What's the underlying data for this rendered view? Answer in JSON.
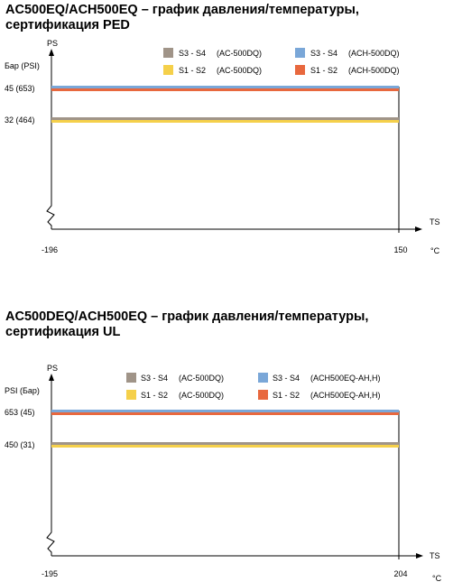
{
  "charts": [
    {
      "title_line1": "AC500EQ/ACH500EQ – график давления/температуры,",
      "title_line2": "сертификация PED"
    },
    {
      "title_line1": "AC500DEQ/ACH500EQ – график давления/температуры,",
      "title_line2": "сертификация UL"
    }
  ],
  "colors": {
    "s3s4_ac": "#a09488",
    "s1s2_ac": "#f5d04a",
    "s3s4_ach": "#7aa7d8",
    "s1s2_ach": "#e8683e",
    "frame": "#000000"
  },
  "chart_data": [
    {
      "type": "line",
      "title": "AC500EQ/ACH500EQ – график давления/температуры, сертификация PED",
      "y_axis_label": "PS",
      "y_unit_label": "Бар (PSI)",
      "x_axis_label": "TS",
      "x_unit_label": "°C",
      "x_range": [
        -196,
        150
      ],
      "x_tick_labels": [
        "-196",
        "150"
      ],
      "y_tick_labels": [
        "45  (653)",
        "32  (464)"
      ],
      "legend_position": "top-right",
      "series": [
        {
          "name": "S3 - S4     (AC-500DQ)",
          "label": "S3 - S4",
          "model": "(AC-500DQ)",
          "color": "#a09488",
          "x": [
            -196,
            150
          ],
          "y": [
            32,
            32
          ]
        },
        {
          "name": "S1 - S2     (AC-500DQ)",
          "label": "S1 - S2",
          "model": "(AC-500DQ)",
          "color": "#f5d04a",
          "x": [
            -196,
            150
          ],
          "y": [
            32,
            32
          ]
        },
        {
          "name": "S3 - S4     (ACH-500DQ)",
          "label": "S3 - S4",
          "model": "(ACH-500DQ)",
          "color": "#7aa7d8",
          "x": [
            -196,
            150
          ],
          "y": [
            45,
            45
          ]
        },
        {
          "name": "S1 - S2     (ACH-500DQ)",
          "label": "S1 - S2",
          "model": "(ACH-500DQ)",
          "color": "#e8683e",
          "x": [
            -196,
            150
          ],
          "y": [
            45,
            45
          ]
        }
      ]
    },
    {
      "type": "line",
      "title": "AC500DEQ/ACH500EQ – график давления/температуры, сертификация UL",
      "y_axis_label": "PS",
      "y_unit_label": "PSI (Бар)",
      "x_axis_label": "TS",
      "x_unit_label": "°C",
      "x_range": [
        -195,
        204
      ],
      "x_tick_labels": [
        "-195",
        "204"
      ],
      "y_tick_labels": [
        "653 (45)",
        "450 (31)"
      ],
      "legend_position": "top-right",
      "series": [
        {
          "name": "S3 - S4     (AC-500DQ)",
          "label": "S3 - S4",
          "model": "(AC-500DQ)",
          "color": "#a09488",
          "x": [
            -195,
            204
          ],
          "y": [
            450,
            450
          ]
        },
        {
          "name": "S1 - S2     (AC-500DQ)",
          "label": "S1 - S2",
          "model": "(AC-500DQ)",
          "color": "#f5d04a",
          "x": [
            -195,
            204
          ],
          "y": [
            450,
            450
          ]
        },
        {
          "name": "S3 - S4     (ACH500EQ-AH,H)",
          "label": "S3 - S4",
          "model": "(ACH500EQ-AH,H)",
          "color": "#7aa7d8",
          "x": [
            -195,
            204
          ],
          "y": [
            653,
            653
          ]
        },
        {
          "name": "S1 - S2     (ACH500EQ-AH,H)",
          "label": "S1 - S2",
          "model": "(ACH500EQ-AH,H)",
          "color": "#e8683e",
          "x": [
            -195,
            204
          ],
          "y": [
            653,
            653
          ]
        }
      ]
    }
  ]
}
